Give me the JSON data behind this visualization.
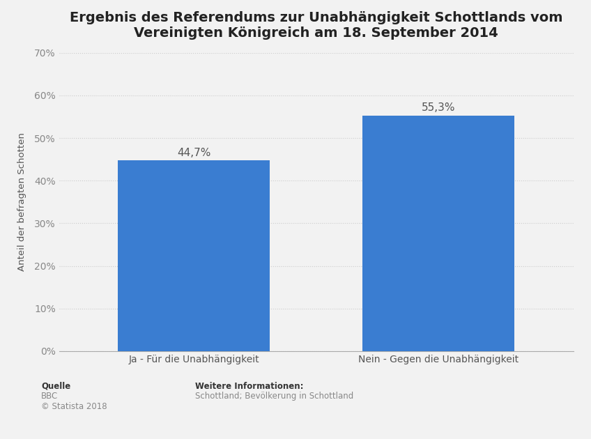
{
  "title": "Ergebnis des Referendums zur Unabhängigkeit Schottlands vom\nVereinigten Königreich am 18. September 2014",
  "categories": [
    "Ja - Für die Unabhängigkeit",
    "Nein - Gegen die Unabhängigkeit"
  ],
  "values": [
    44.7,
    55.3
  ],
  "bar_color": "#3a7dd1",
  "ylabel": "Anteil der befragten Schotten",
  "ylim": [
    0,
    70
  ],
  "yticks": [
    0,
    10,
    20,
    30,
    40,
    50,
    60,
    70
  ],
  "ytick_labels": [
    "0%",
    "10%",
    "20%",
    "30%",
    "40%",
    "50%",
    "60%",
    "70%"
  ],
  "value_labels": [
    "44,7%",
    "55,3%"
  ],
  "background_color": "#f2f2f2",
  "plot_bg_color": "#f2f2f2",
  "title_fontsize": 14,
  "axis_label_fontsize": 9.5,
  "tick_fontsize": 10,
  "value_label_fontsize": 11,
  "footer_left_bold": "Quelle",
  "footer_left_line2": "BBC",
  "footer_left_line3": "© Statista 2018",
  "footer_right_bold": "Weitere Informationen:",
  "footer_right_line2": "Schottland; Bevölkerung in Schottland"
}
